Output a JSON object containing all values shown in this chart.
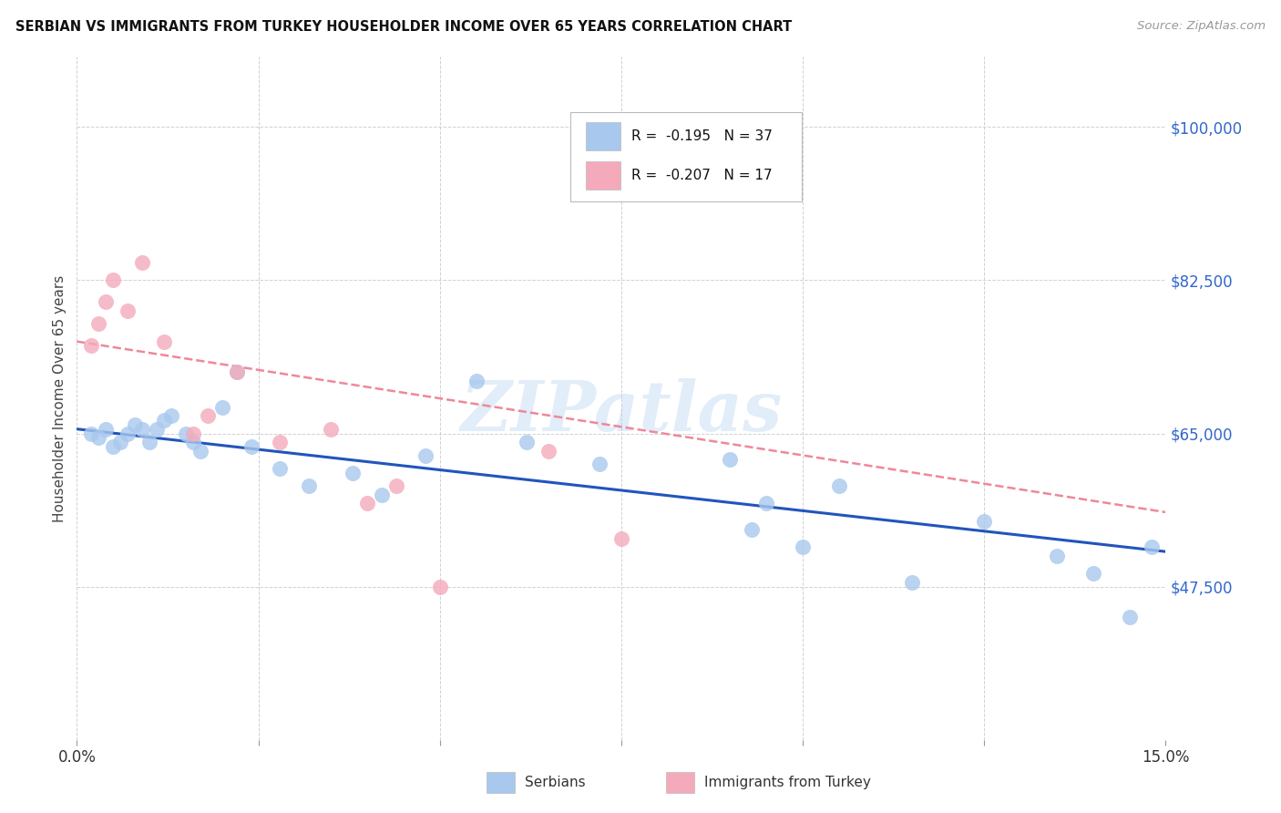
{
  "title": "SERBIAN VS IMMIGRANTS FROM TURKEY HOUSEHOLDER INCOME OVER 65 YEARS CORRELATION CHART",
  "source": "Source: ZipAtlas.com",
  "ylabel": "Householder Income Over 65 years",
  "x_min": 0.0,
  "x_max": 0.15,
  "y_min": 30000,
  "y_max": 108000,
  "yticks": [
    47500,
    65000,
    82500,
    100000
  ],
  "ytick_labels": [
    "$47,500",
    "$65,000",
    "$82,500",
    "$100,000"
  ],
  "xticks": [
    0.0,
    0.025,
    0.05,
    0.075,
    0.1,
    0.125,
    0.15
  ],
  "xtick_labels": [
    "0.0%",
    "",
    "",
    "",
    "",
    "",
    "15.0%"
  ],
  "watermark_text": "ZIPatlas",
  "serbian_color": "#A8C8EE",
  "turkey_color": "#F4AABB",
  "serbian_line_color": "#2255BB",
  "turkey_line_color": "#EE8899",
  "background_color": "#FFFFFF",
  "grid_color": "#CCCCCC",
  "ytick_color": "#3366CC",
  "legend_r1_val": "-0.195",
  "legend_r1_n": "37",
  "legend_r2_val": "-0.207",
  "legend_r2_n": "17",
  "serbian_points_x": [
    0.002,
    0.003,
    0.004,
    0.005,
    0.006,
    0.007,
    0.008,
    0.009,
    0.01,
    0.011,
    0.012,
    0.013,
    0.015,
    0.016,
    0.017,
    0.02,
    0.022,
    0.024,
    0.028,
    0.032,
    0.038,
    0.042,
    0.048,
    0.055,
    0.062,
    0.072,
    0.09,
    0.093,
    0.095,
    0.1,
    0.105,
    0.115,
    0.125,
    0.135,
    0.14,
    0.145,
    0.148
  ],
  "serbian_points_y": [
    65000,
    64500,
    65500,
    63500,
    64000,
    65000,
    66000,
    65500,
    64000,
    65500,
    66500,
    67000,
    65000,
    64000,
    63000,
    68000,
    72000,
    63500,
    61000,
    59000,
    60500,
    58000,
    62500,
    71000,
    64000,
    61500,
    62000,
    54000,
    57000,
    52000,
    59000,
    48000,
    55000,
    51000,
    49000,
    44000,
    52000
  ],
  "turkey_points_x": [
    0.002,
    0.003,
    0.004,
    0.005,
    0.007,
    0.009,
    0.012,
    0.016,
    0.018,
    0.022,
    0.028,
    0.035,
    0.04,
    0.044,
    0.05,
    0.065,
    0.075
  ],
  "turkey_points_y": [
    75000,
    77500,
    80000,
    82500,
    79000,
    84500,
    75500,
    65000,
    67000,
    72000,
    64000,
    65500,
    57000,
    59000,
    47500,
    63000,
    53000
  ],
  "serbian_trend_x": [
    0.0,
    0.15
  ],
  "serbian_trend_y": [
    65500,
    51500
  ],
  "turkey_trend_x": [
    0.0,
    0.15
  ],
  "turkey_trend_y": [
    75500,
    56000
  ]
}
